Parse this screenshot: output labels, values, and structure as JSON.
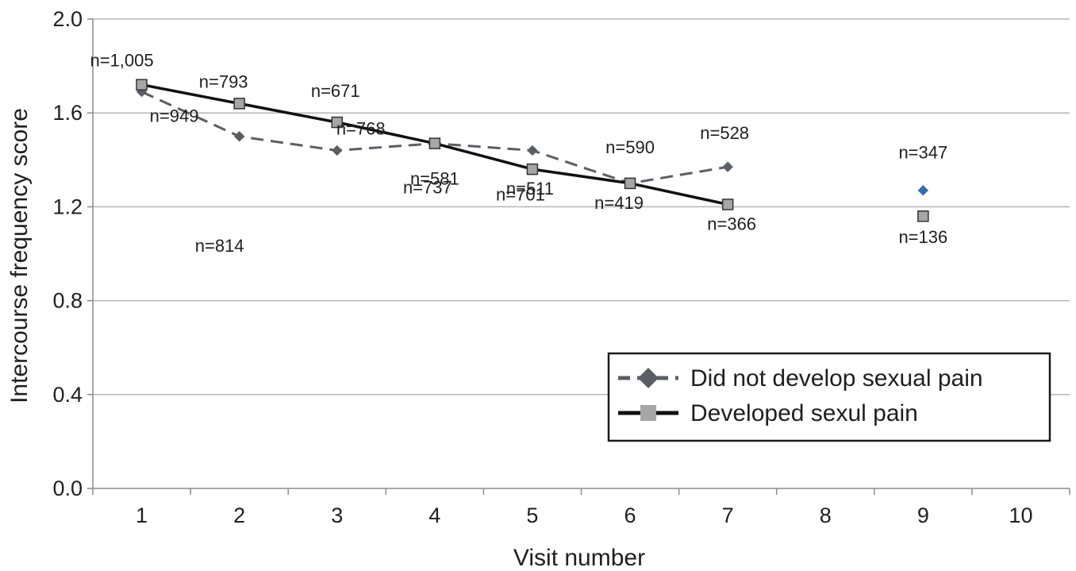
{
  "chart_data": {
    "type": "line",
    "title": "",
    "xlabel": "Visit number",
    "ylabel": "Intercourse frequency score",
    "xlim": [
      0.5,
      10.5
    ],
    "ylim": [
      0.0,
      2.0
    ],
    "x_ticks": [
      "1",
      "2",
      "3",
      "4",
      "5",
      "6",
      "7",
      "8",
      "9",
      "10"
    ],
    "y_ticks": [
      "0.0",
      "0.4",
      "0.8",
      "1.2",
      "1.6",
      "2.0"
    ],
    "grid": "horizontal",
    "legend": "bottom-right",
    "series": [
      {
        "name": "Did not develop sexual pain",
        "style": "dashed",
        "marker": "diamond",
        "color": "#5a5f66",
        "marker_color": "#5a5f66",
        "points": [
          {
            "x": 1,
            "y": 1.69,
            "label": "n=949"
          },
          {
            "x": 2,
            "y": 1.5,
            "label": "n=814"
          },
          {
            "x": 3,
            "y": 1.44,
            "label": "n=768"
          },
          {
            "x": 4,
            "y": 1.47,
            "label": "n=737"
          },
          {
            "x": 5,
            "y": 1.44,
            "label": "n=701"
          },
          {
            "x": 6,
            "y": 1.3,
            "label": "n=590"
          },
          {
            "x": 7,
            "y": 1.37,
            "label": "n=528"
          },
          {
            "x": 9,
            "y": 1.27,
            "label": "n=347"
          }
        ]
      },
      {
        "name": "Developed sexul pain",
        "style": "solid",
        "marker": "square",
        "color": "#111111",
        "marker_color": "#a6a6a6",
        "points": [
          {
            "x": 1,
            "y": 1.72,
            "label": "n=1,005"
          },
          {
            "x": 2,
            "y": 1.64,
            "label": "n=793"
          },
          {
            "x": 3,
            "y": 1.56,
            "label": "n=671"
          },
          {
            "x": 4,
            "y": 1.47,
            "label": "n=581"
          },
          {
            "x": 5,
            "y": 1.36,
            "label": "n=511"
          },
          {
            "x": 6,
            "y": 1.3,
            "label": "n=419"
          },
          {
            "x": 7,
            "y": 1.21,
            "label": "n=366"
          },
          {
            "x": 9,
            "y": 1.16,
            "label": "n=136"
          }
        ]
      }
    ]
  }
}
